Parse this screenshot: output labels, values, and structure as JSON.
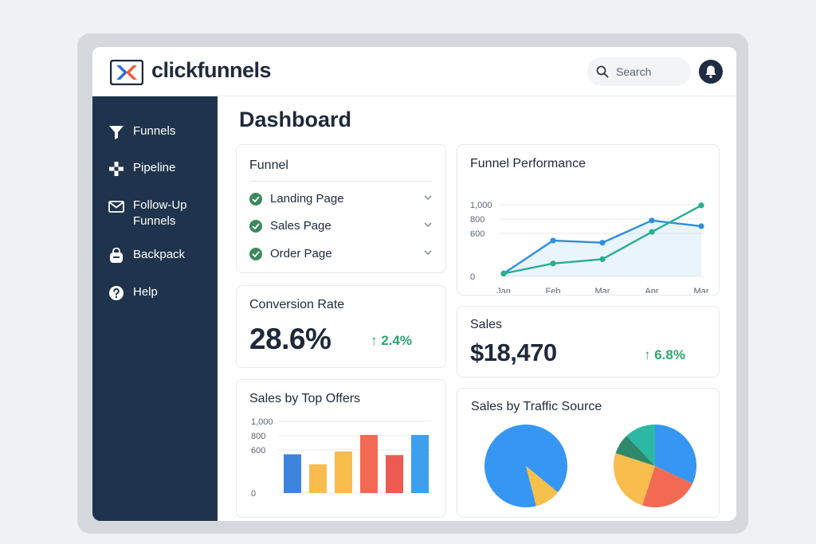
{
  "app": {
    "logo_text": "clickfunnels",
    "brand_colors": {
      "orange": "#f05a3c",
      "blue": "#2e6fd8",
      "navy": "#1f344c"
    }
  },
  "header": {
    "search_placeholder": "Search",
    "search_icon": "search-icon",
    "bell_icon": "bell-icon"
  },
  "sidebar": {
    "items": [
      {
        "label": "Funnels",
        "icon": "funnel-icon"
      },
      {
        "label": "Pipeline",
        "icon": "pipeline-icon"
      },
      {
        "label": "Follow-Up\nFunnels",
        "icon": "mail-icon"
      },
      {
        "label": "Backpack",
        "icon": "backpack-icon"
      },
      {
        "label": "Help",
        "icon": "help-icon"
      }
    ]
  },
  "main": {
    "title": "Dashboard",
    "funnel_card": {
      "title": "Funnel",
      "items": [
        {
          "label": "Landing Page",
          "status": "complete"
        },
        {
          "label": "Sales Page",
          "status": "complete"
        },
        {
          "label": "Order Page",
          "status": "complete"
        }
      ]
    },
    "conversion_card": {
      "title": "Conversion Rate",
      "value": "28.6%",
      "delta": "↑ 2.4%"
    },
    "sales_card": {
      "title": "Sales",
      "value": "$18,470",
      "delta": "↑ 6.8%"
    },
    "performance_card": {
      "title": "Funnel Performance"
    },
    "top_offers_card": {
      "title": "Sales by Top Offers"
    },
    "traffic_card": {
      "title": "Sales by Traffic Source"
    }
  },
  "chart_data": [
    {
      "type": "line",
      "title": "Funnel Performance",
      "x": [
        "Jan",
        "Feb",
        "Mar",
        "Apr",
        "Mar"
      ],
      "yticks": [
        "1,000",
        "800",
        "600",
        "0"
      ],
      "ylim": [
        0,
        1000
      ],
      "grid": true,
      "series": [
        {
          "color": "#2f8fdd",
          "values": [
            40,
            500,
            470,
            780,
            700
          ],
          "fill": true
        },
        {
          "color": "#27b08c",
          "values": [
            40,
            180,
            240,
            620,
            990
          ]
        }
      ]
    },
    {
      "type": "bar",
      "title": "Sales by Top Offers",
      "categories": [
        "",
        "",
        "",
        "",
        "",
        ""
      ],
      "yticks": [
        "1,000",
        "800",
        "600",
        "0"
      ],
      "ylim": [
        0,
        1000
      ],
      "grid": true,
      "values": [
        540,
        400,
        580,
        810,
        530,
        810
      ],
      "colors": [
        "#3f84dc",
        "#f9bd4e",
        "#f9bd4e",
        "#f26a52",
        "#ee5a52",
        "#3f9fef"
      ]
    },
    {
      "type": "pie",
      "title": "Sales by Traffic Source",
      "charts": [
        {
          "slices": [
            {
              "value": 90,
              "color": "#3597f3"
            },
            {
              "value": 10,
              "color": "#f6c04a"
            }
          ]
        },
        {
          "slices": [
            {
              "value": 32,
              "color": "#3597f3"
            },
            {
              "value": 23,
              "color": "#f26a52"
            },
            {
              "value": 25,
              "color": "#f9bd4e"
            },
            {
              "value": 8,
              "color": "#2e8a6b"
            },
            {
              "value": 12,
              "color": "#2bb8a4"
            }
          ]
        }
      ]
    }
  ]
}
